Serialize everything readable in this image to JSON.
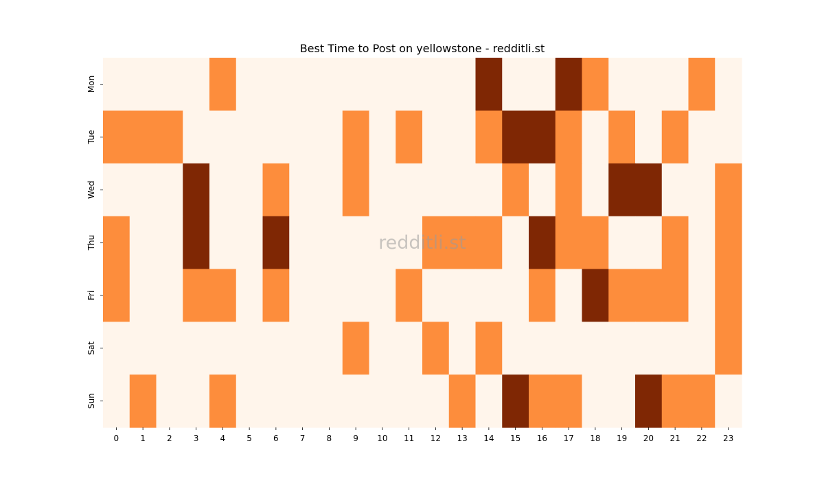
{
  "chart_data": {
    "type": "heatmap",
    "title": "Best Time to Post on yellowstone - redditli.st",
    "watermark": "redditli.st",
    "x_categories": [
      "0",
      "1",
      "2",
      "3",
      "4",
      "5",
      "6",
      "7",
      "8",
      "9",
      "10",
      "11",
      "12",
      "13",
      "14",
      "15",
      "16",
      "17",
      "18",
      "19",
      "20",
      "21",
      "22",
      "23"
    ],
    "y_categories": [
      "Mon",
      "Tue",
      "Wed",
      "Thu",
      "Fri",
      "Sat",
      "Sun"
    ],
    "values": [
      [
        0,
        0,
        0,
        0,
        1,
        0,
        0,
        0,
        0,
        0,
        0,
        0,
        0,
        0,
        2,
        0,
        0,
        2,
        1,
        0,
        0,
        0,
        1,
        0
      ],
      [
        1,
        1,
        1,
        0,
        0,
        0,
        0,
        0,
        0,
        1,
        0,
        1,
        0,
        0,
        1,
        2,
        2,
        1,
        0,
        1,
        0,
        1,
        0,
        0
      ],
      [
        0,
        0,
        0,
        2,
        0,
        0,
        1,
        0,
        0,
        1,
        0,
        0,
        0,
        0,
        0,
        1,
        0,
        1,
        0,
        2,
        2,
        0,
        0,
        1
      ],
      [
        1,
        0,
        0,
        2,
        0,
        0,
        2,
        0,
        0,
        0,
        0,
        0,
        1,
        1,
        1,
        0,
        2,
        1,
        1,
        0,
        0,
        1,
        0,
        1
      ],
      [
        1,
        0,
        0,
        1,
        1,
        0,
        1,
        0,
        0,
        0,
        0,
        1,
        0,
        0,
        0,
        0,
        1,
        0,
        2,
        1,
        1,
        1,
        0,
        1
      ],
      [
        0,
        0,
        0,
        0,
        0,
        0,
        0,
        0,
        0,
        1,
        0,
        0,
        1,
        0,
        1,
        0,
        0,
        0,
        0,
        0,
        0,
        0,
        0,
        1
      ],
      [
        0,
        1,
        0,
        0,
        1,
        0,
        0,
        0,
        0,
        0,
        0,
        0,
        0,
        1,
        0,
        2,
        1,
        1,
        0,
        0,
        2,
        1,
        1,
        0
      ]
    ],
    "colors": {
      "0": "#fff5eb",
      "1": "#fd8d3c",
      "2": "#7f2704"
    }
  }
}
